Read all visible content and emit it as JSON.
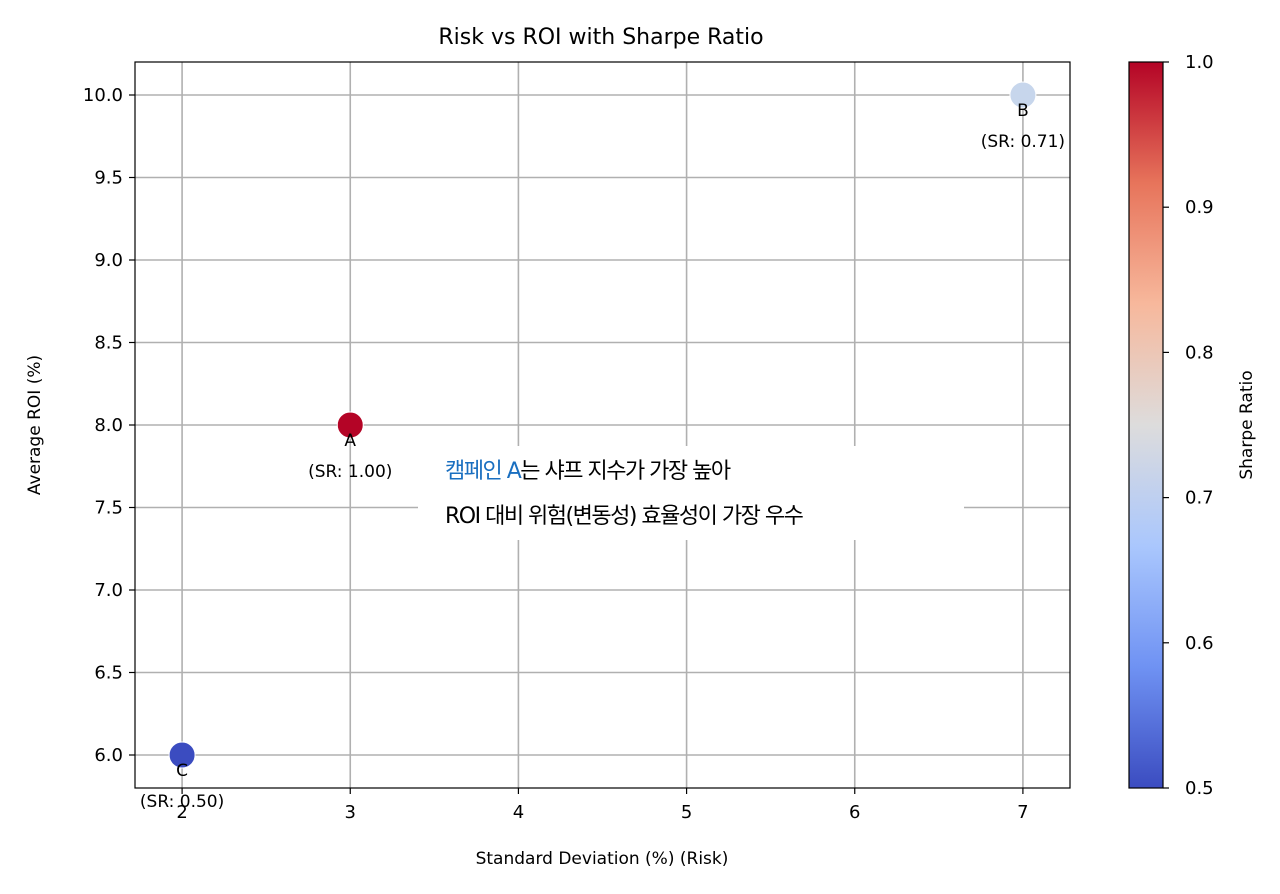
{
  "chart_data": {
    "type": "scatter",
    "title": "Risk vs ROI with Sharpe Ratio",
    "xlabel": "Standard Deviation (%) (Risk)",
    "ylabel": "Average ROI (%)",
    "xlim": [
      1.72,
      7.28
    ],
    "ylim": [
      5.8,
      10.2
    ],
    "x_ticks": [
      2,
      3,
      4,
      5,
      6,
      7
    ],
    "x_tick_labels": [
      "2",
      "3",
      "4",
      "5",
      "6",
      "7"
    ],
    "y_ticks": [
      6.0,
      6.5,
      7.0,
      7.5,
      8.0,
      8.5,
      9.0,
      9.5,
      10.0
    ],
    "y_tick_labels": [
      "6.0",
      "6.5",
      "7.0",
      "7.5",
      "8.0",
      "8.5",
      "9.0",
      "9.5",
      "10.0"
    ],
    "grid": true,
    "points": [
      {
        "name": "A",
        "x": 3,
        "y": 8.0,
        "sharpe": 1.0,
        "sr_label": "(SR: 1.00)",
        "color": "#b40426"
      },
      {
        "name": "B",
        "x": 7,
        "y": 10.0,
        "sharpe": 0.71,
        "sr_label": "(SR: 0.71)",
        "color": "#c7d6ec"
      },
      {
        "name": "C",
        "x": 2,
        "y": 6.0,
        "sharpe": 0.5,
        "sr_label": "(SR: 0.50)",
        "color": "#3b4cc0"
      }
    ],
    "colorbar": {
      "label": "Sharpe Ratio",
      "colormap": "coolwarm",
      "range": [
        0.5,
        1.0
      ],
      "ticks": [
        0.5,
        0.6,
        0.7,
        0.8,
        0.9,
        1.0
      ],
      "tick_labels": [
        "0.5",
        "0.6",
        "0.7",
        "0.8",
        "0.9",
        "1.0"
      ],
      "stops": [
        "#3b4cc0",
        "#6f92f3",
        "#aac7fd",
        "#dddcdc",
        "#f7b89c",
        "#e7745b",
        "#b40426"
      ]
    },
    "annotation": {
      "highlight": "캠페인 A",
      "line1_rest": "는 샤프 지수가 가장 높아",
      "line2": "ROI 대비 위험(변동성) 효율성이 가장 우수",
      "highlight_color": "#1a6fc0"
    }
  }
}
